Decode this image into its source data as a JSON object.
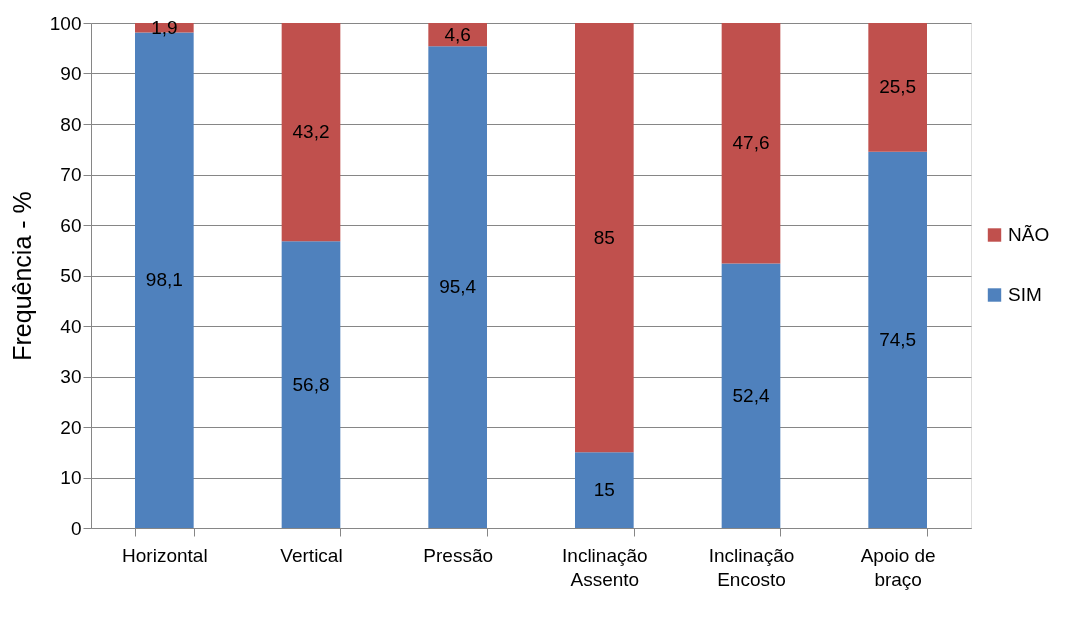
{
  "chart_data": {
    "type": "bar",
    "stacked": true,
    "ylabel": "Frequência - %",
    "categories": [
      "Horizontal",
      "Vertical",
      "Pressão",
      "Inclinação Assento",
      "Inclinação Encosto",
      "Apoio de braço"
    ],
    "series": [
      {
        "name": "SIM",
        "color": "#4f81bd",
        "values": [
          98.1,
          56.8,
          95.4,
          15,
          52.4,
          74.5
        ],
        "value_labels": [
          "98,1",
          "56,8",
          "95,4",
          "15",
          "52,4",
          "74,5"
        ]
      },
      {
        "name": "NÃO",
        "color": "#c0504d",
        "values": [
          1.9,
          43.2,
          4.6,
          85,
          47.6,
          25.5
        ],
        "value_labels": [
          "1,9",
          "43,2",
          "4,6",
          "85",
          "47,6",
          "25,5"
        ]
      }
    ],
    "ylim": [
      0,
      100
    ],
    "yticks": [
      0,
      10,
      20,
      30,
      40,
      50,
      60,
      70,
      80,
      90,
      100
    ],
    "grid": "y",
    "legend": "right"
  }
}
